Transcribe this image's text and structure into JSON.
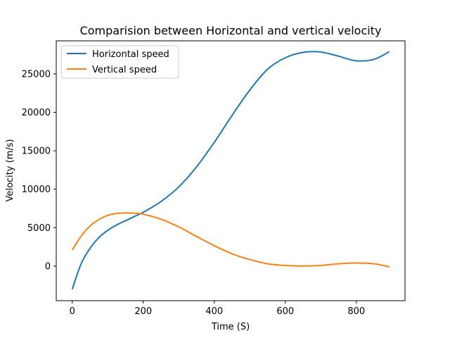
{
  "chart_data": {
    "type": "line",
    "title": "Comparision between Horizontal and vertical velocity",
    "xlabel": "Time (S)",
    "ylabel": "Velocity (m/s)",
    "xlim": [
      -45,
      937
    ],
    "ylim": [
      -4500,
      29300
    ],
    "xticks": [
      0,
      200,
      400,
      600,
      800
    ],
    "yticks": [
      0,
      5000,
      10000,
      15000,
      20000,
      25000
    ],
    "grid": false,
    "legend_position": "upper left",
    "series": [
      {
        "name": "Horizontal speed",
        "color": "#1f77b4",
        "x": [
          0,
          25,
          50,
          75,
          100,
          125,
          150,
          175,
          200,
          250,
          300,
          350,
          400,
          450,
          500,
          550,
          600,
          650,
          700,
          750,
          800,
          850,
          893
        ],
        "y": [
          -3000,
          300,
          2300,
          3700,
          4650,
          5350,
          5900,
          6450,
          7000,
          8400,
          10300,
          12900,
          16100,
          19600,
          22900,
          25600,
          27100,
          27800,
          27850,
          27300,
          26700,
          26900,
          27900
        ]
      },
      {
        "name": "Vertical speed",
        "color": "#ff7f0e",
        "x": [
          0,
          25,
          50,
          75,
          100,
          125,
          150,
          175,
          200,
          250,
          300,
          350,
          400,
          450,
          500,
          550,
          600,
          650,
          700,
          750,
          800,
          850,
          893
        ],
        "y": [
          2100,
          3900,
          5200,
          6050,
          6600,
          6850,
          6920,
          6880,
          6750,
          6100,
          5100,
          3850,
          2650,
          1600,
          850,
          300,
          80,
          0,
          80,
          300,
          400,
          300,
          -100
        ]
      }
    ]
  }
}
